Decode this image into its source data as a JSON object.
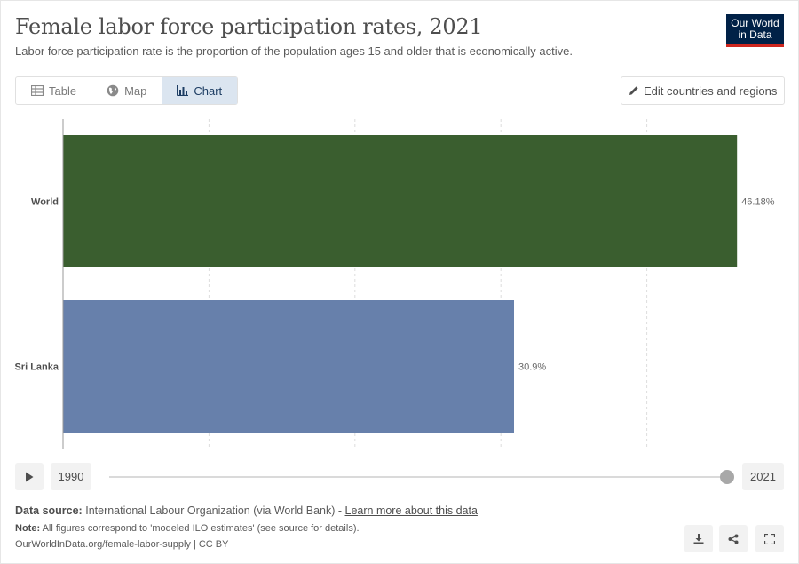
{
  "header": {
    "title": "Female labor force participation rates, 2021",
    "subtitle": "Labor force participation rate is the proportion of the population ages 15 and older that is economically active."
  },
  "logo": {
    "line1": "Our World",
    "line2": "in Data"
  },
  "tabs": [
    {
      "label": "Table",
      "icon": "table-icon"
    },
    {
      "label": "Map",
      "icon": "globe-icon"
    },
    {
      "label": "Chart",
      "icon": "bar-chart-icon",
      "active": true
    }
  ],
  "edit_button": {
    "label": "Edit countries and regions",
    "icon": "pencil-icon"
  },
  "chart_data": {
    "type": "bar",
    "orientation": "horizontal",
    "categories": [
      "World",
      "Sri Lanka"
    ],
    "values": [
      46.18,
      30.9
    ],
    "value_labels": [
      "46.18%",
      "30.9%"
    ],
    "colors": [
      "#3a5e2f",
      "#6780ab"
    ],
    "xlim": [
      0,
      50
    ],
    "grid": true
  },
  "timeline": {
    "start_year": "1990",
    "end_year": "2021",
    "position": 1.0
  },
  "footer": {
    "source_label": "Data source:",
    "source_text": "International Labour Organization (via World Bank) - ",
    "source_link": "Learn more about this data",
    "note_label": "Note:",
    "note_text": "All figures correspond to 'modeled ILO estimates' (see source for details).",
    "url": "OurWorldInData.org/female-labor-supply | CC BY"
  },
  "colors": {
    "brand": "#002147",
    "accent": "#ce261e",
    "tab_active": "#dbe5f0"
  }
}
